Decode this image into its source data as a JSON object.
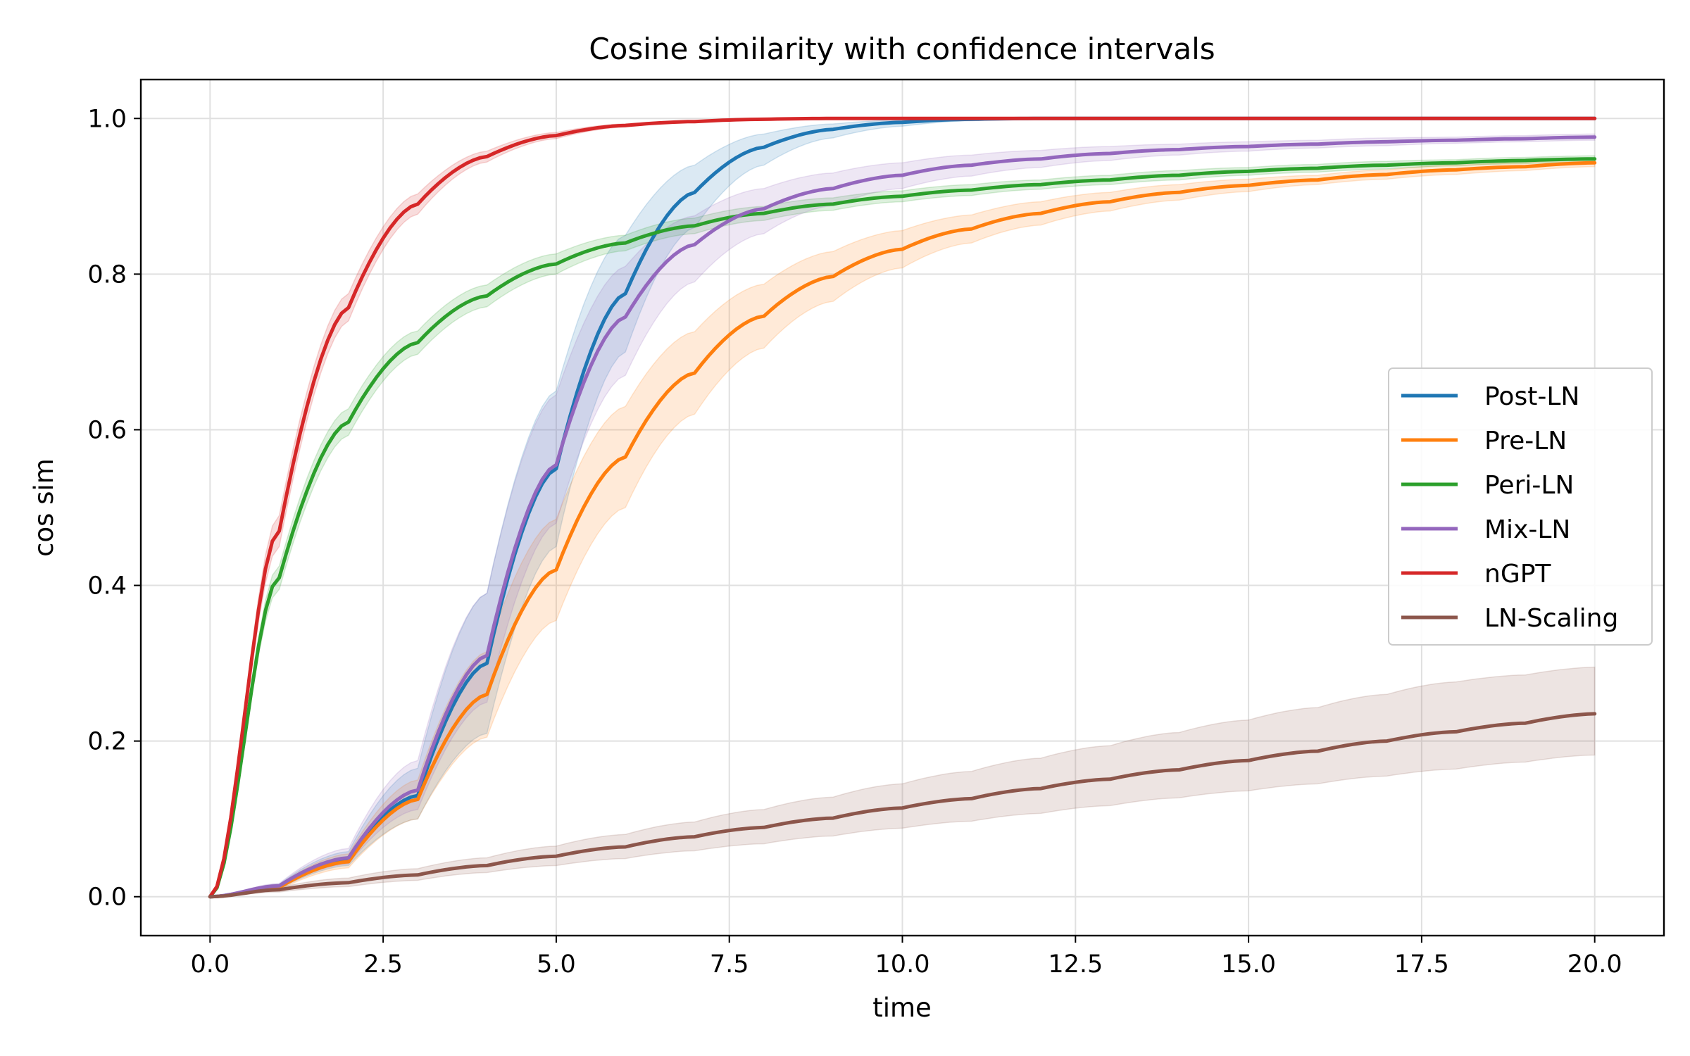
{
  "chart_data": {
    "type": "line",
    "title": "Cosine similarity with confidence intervals",
    "xlabel": "time",
    "ylabel": "cos sim",
    "xlim": [
      -1.0,
      21.0
    ],
    "ylim": [
      -0.05,
      1.05
    ],
    "xticks": [
      0.0,
      2.5,
      5.0,
      7.5,
      10.0,
      12.5,
      15.0,
      17.5,
      20.0
    ],
    "xtick_labels": [
      "0.0",
      "2.5",
      "5.0",
      "7.5",
      "10.0",
      "12.5",
      "15.0",
      "17.5",
      "20.0"
    ],
    "yticks": [
      0.0,
      0.2,
      0.4,
      0.6,
      0.8,
      1.0
    ],
    "ytick_labels": [
      "0.0",
      "0.2",
      "0.4",
      "0.6",
      "0.8",
      "1.0"
    ],
    "grid": true,
    "legend_position": "center-right",
    "x": [
      0,
      1,
      2,
      3,
      4,
      5,
      6,
      7,
      8,
      9,
      10,
      11,
      12,
      13,
      14,
      15,
      16,
      17,
      18,
      19,
      20
    ],
    "series": [
      {
        "name": "Post-LN",
        "color": "#1f77b4",
        "values": [
          0.0,
          0.013,
          0.048,
          0.13,
          0.3,
          0.55,
          0.775,
          0.905,
          0.963,
          0.986,
          0.995,
          0.999,
          1.0,
          1.0,
          1.0,
          1.0,
          1.0,
          1.0,
          1.0,
          1.0,
          1.0
        ],
        "lower": [
          0.0,
          0.01,
          0.04,
          0.1,
          0.21,
          0.45,
          0.7,
          0.86,
          0.94,
          0.975,
          0.99,
          0.997,
          0.999,
          1.0,
          1.0,
          1.0,
          1.0,
          1.0,
          1.0,
          1.0,
          1.0
        ],
        "upper": [
          0.0,
          0.016,
          0.058,
          0.165,
          0.39,
          0.65,
          0.85,
          0.94,
          0.98,
          0.993,
          0.998,
          1.0,
          1.0,
          1.0,
          1.0,
          1.0,
          1.0,
          1.0,
          1.0,
          1.0,
          1.0
        ]
      },
      {
        "name": "Pre-LN",
        "color": "#ff7f0e",
        "values": [
          0.0,
          0.012,
          0.045,
          0.125,
          0.26,
          0.42,
          0.565,
          0.673,
          0.746,
          0.797,
          0.832,
          0.858,
          0.878,
          0.893,
          0.905,
          0.914,
          0.921,
          0.928,
          0.934,
          0.938,
          0.943
        ],
        "lower": [
          0.0,
          0.009,
          0.037,
          0.1,
          0.205,
          0.355,
          0.5,
          0.62,
          0.705,
          0.765,
          0.808,
          0.84,
          0.863,
          0.881,
          0.895,
          0.906,
          0.915,
          0.922,
          0.928,
          0.933,
          0.938
        ],
        "upper": [
          0.0,
          0.015,
          0.055,
          0.15,
          0.315,
          0.485,
          0.63,
          0.726,
          0.787,
          0.829,
          0.856,
          0.876,
          0.893,
          0.905,
          0.915,
          0.922,
          0.927,
          0.934,
          0.94,
          0.943,
          0.948
        ]
      },
      {
        "name": "Peri-LN",
        "color": "#2ca02c",
        "values": [
          0.0,
          0.41,
          0.61,
          0.712,
          0.772,
          0.813,
          0.84,
          0.862,
          0.878,
          0.89,
          0.9,
          0.908,
          0.915,
          0.921,
          0.927,
          0.932,
          0.936,
          0.94,
          0.943,
          0.946,
          0.948
        ],
        "lower": [
          0.0,
          0.395,
          0.593,
          0.697,
          0.758,
          0.8,
          0.83,
          0.852,
          0.869,
          0.882,
          0.893,
          0.901,
          0.909,
          0.915,
          0.921,
          0.927,
          0.931,
          0.935,
          0.939,
          0.942,
          0.944
        ],
        "upper": [
          0.0,
          0.425,
          0.627,
          0.727,
          0.786,
          0.826,
          0.85,
          0.872,
          0.887,
          0.898,
          0.907,
          0.915,
          0.921,
          0.927,
          0.933,
          0.937,
          0.941,
          0.945,
          0.947,
          0.95,
          0.952
        ]
      },
      {
        "name": "Mix-LN",
        "color": "#9467bd",
        "values": [
          0.0,
          0.014,
          0.05,
          0.137,
          0.31,
          0.555,
          0.745,
          0.838,
          0.884,
          0.91,
          0.927,
          0.94,
          0.948,
          0.955,
          0.96,
          0.964,
          0.967,
          0.97,
          0.972,
          0.974,
          0.976
        ],
        "lower": [
          0.0,
          0.011,
          0.042,
          0.112,
          0.25,
          0.48,
          0.67,
          0.79,
          0.852,
          0.888,
          0.91,
          0.926,
          0.937,
          0.946,
          0.953,
          0.958,
          0.962,
          0.965,
          0.968,
          0.97,
          0.972
        ],
        "upper": [
          0.0,
          0.017,
          0.062,
          0.175,
          0.39,
          0.645,
          0.81,
          0.875,
          0.91,
          0.93,
          0.943,
          0.953,
          0.959,
          0.964,
          0.967,
          0.97,
          0.972,
          0.975,
          0.976,
          0.978,
          0.98
        ]
      },
      {
        "name": "nGPT",
        "color": "#d62728",
        "values": [
          0.0,
          0.47,
          0.757,
          0.89,
          0.951,
          0.978,
          0.991,
          0.996,
          0.999,
          1.0,
          1.0,
          1.0,
          1.0,
          1.0,
          1.0,
          1.0,
          1.0,
          1.0,
          1.0,
          1.0,
          1.0
        ],
        "lower": [
          0.0,
          0.45,
          0.74,
          0.877,
          0.944,
          0.974,
          0.989,
          0.995,
          0.998,
          1.0,
          1.0,
          1.0,
          1.0,
          1.0,
          1.0,
          1.0,
          1.0,
          1.0,
          1.0,
          1.0,
          1.0
        ],
        "upper": [
          0.0,
          0.49,
          0.775,
          0.903,
          0.958,
          0.982,
          0.993,
          0.997,
          1.0,
          1.0,
          1.0,
          1.0,
          1.0,
          1.0,
          1.0,
          1.0,
          1.0,
          1.0,
          1.0,
          1.0,
          1.0
        ]
      },
      {
        "name": "LN-Scaling",
        "color": "#8c564b",
        "values": [
          0.0,
          0.009,
          0.018,
          0.028,
          0.04,
          0.052,
          0.064,
          0.077,
          0.089,
          0.101,
          0.114,
          0.126,
          0.139,
          0.151,
          0.163,
          0.175,
          0.187,
          0.2,
          0.212,
          0.223,
          0.235
        ],
        "lower": [
          0.0,
          0.006,
          0.013,
          0.021,
          0.031,
          0.04,
          0.049,
          0.059,
          0.068,
          0.078,
          0.088,
          0.097,
          0.107,
          0.117,
          0.127,
          0.136,
          0.145,
          0.155,
          0.164,
          0.173,
          0.182
        ],
        "upper": [
          0.0,
          0.012,
          0.024,
          0.036,
          0.05,
          0.065,
          0.08,
          0.096,
          0.112,
          0.128,
          0.145,
          0.161,
          0.178,
          0.194,
          0.211,
          0.227,
          0.243,
          0.26,
          0.276,
          0.285,
          0.295
        ]
      }
    ]
  }
}
